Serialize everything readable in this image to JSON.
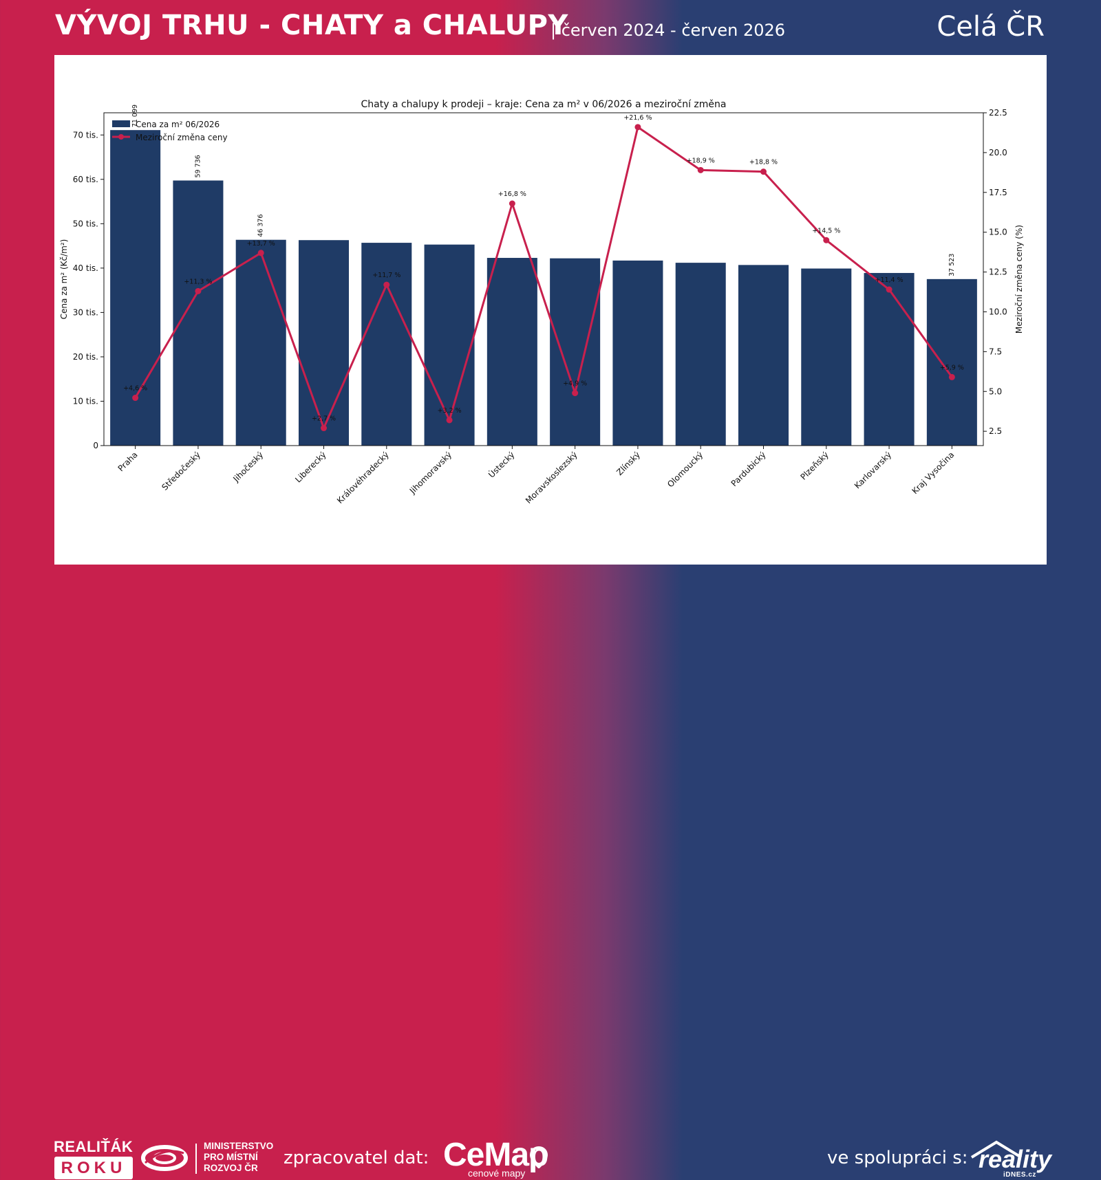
{
  "header": {
    "title": "VÝVOJ TRHU - CHATY a CHALUPY",
    "subtitle": "| červen 2024 - červen 2026",
    "region": "Celá ČR"
  },
  "footer": {
    "realitak": "REALIŤÁK",
    "roku": "ROKU",
    "ministry_lines": [
      "MINISTERSTVO",
      "PRO MÍSTNÍ",
      "ROZVOJ ČR"
    ],
    "processor_label": "zpracovatel dat:",
    "cemap_logo": "CeMap",
    "cemap_sub": "cenové mapy",
    "partner_label": "ve spolupráci s:",
    "reality_logo": "reality",
    "idnes_logo": "iDNES.cz"
  },
  "colors": {
    "bar": "#1f3b66",
    "line": "#c8204d",
    "brand_red": "#c8204d",
    "brand_blue": "#2a3f72"
  },
  "icons": [
    "ministry-logo-icon",
    "cemap-pin-icon",
    "house-roof-icon"
  ],
  "chart_data": {
    "type": "bar",
    "title": "Chaty a chalupy k prodeji – kraje: Cena za m² v 06/2026 a meziroční změna",
    "categories": [
      "Praha",
      "Středočeský",
      "Jihočeský",
      "Liberecký",
      "Královéhradecký",
      "Jihomoravský",
      "Ústecký",
      "Moravskoslezský",
      "Zlínský",
      "Olomoucký",
      "Pardubický",
      "Plzeňský",
      "Karlovarský",
      "Kraj Vysočina"
    ],
    "series": [
      {
        "name": "Cena za m² 06/2026",
        "type": "bar",
        "axis": "left",
        "values": [
          71099,
          59736,
          46376,
          46300,
          45700,
          45300,
          42300,
          42200,
          41700,
          41200,
          40700,
          39900,
          38900,
          37523
        ],
        "value_labels": [
          "71 099",
          "59 736",
          "46 376",
          "",
          "",
          "",
          "",
          "",
          "",
          "",
          "",
          "",
          "",
          "37 523"
        ]
      },
      {
        "name": "Meziroční změna ceny",
        "type": "line",
        "axis": "right",
        "values": [
          4.6,
          11.3,
          13.7,
          2.7,
          11.7,
          3.2,
          16.8,
          4.9,
          21.6,
          18.9,
          18.8,
          14.5,
          11.4,
          5.9
        ],
        "value_labels": [
          "+4,6 %",
          "+11,3 %",
          "+13,7 %",
          "+2,7 %",
          "+11,7 %",
          "+3,2 %",
          "+16,8 %",
          "+4,9 %",
          "+21,6 %",
          "+18,9 %",
          "+18,8 %",
          "+14,5 %",
          "+11,4 %",
          "+5,9 %"
        ]
      }
    ],
    "ylabel": "Cena za m² (Kč/m²)",
    "ylim": [
      0,
      75000
    ],
    "yticks": [
      0,
      10000,
      20000,
      30000,
      40000,
      50000,
      60000,
      70000
    ],
    "ytick_labels": [
      "0",
      "10 tis.",
      "20 tis.",
      "30 tis.",
      "40 tis.",
      "50 tis.",
      "60 tis.",
      "70 tis."
    ],
    "y2label": "Meziroční změna ceny (%)",
    "y2lim": [
      1.6,
      22.5
    ],
    "y2ticks": [
      2.5,
      5.0,
      7.5,
      10.0,
      12.5,
      15.0,
      17.5,
      20.0,
      22.5
    ],
    "y2tick_labels": [
      "2.5",
      "5.0",
      "7.5",
      "10.0",
      "12.5",
      "15.0",
      "17.5",
      "20.0",
      "22.5"
    ],
    "legend_position": "top-left",
    "grid": false
  }
}
